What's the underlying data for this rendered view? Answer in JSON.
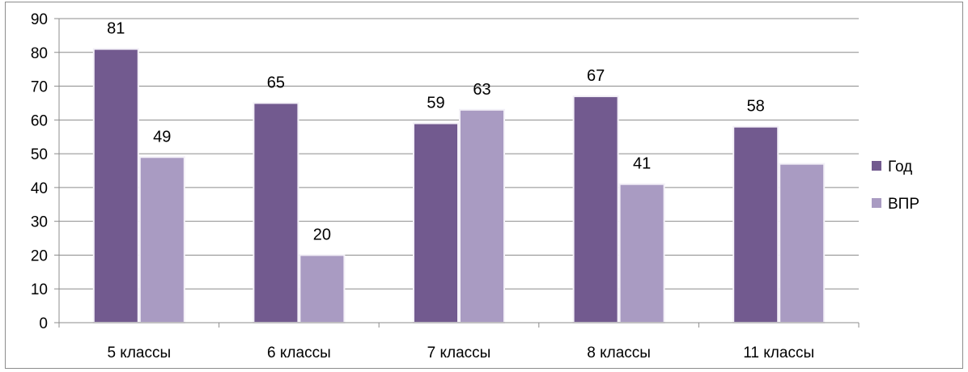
{
  "chart_data": {
    "type": "bar",
    "categories": [
      "5 классы",
      "6 классы",
      "7 классы",
      "8 классы",
      "11 классы"
    ],
    "series": [
      {
        "name": "Год",
        "values": [
          81,
          65,
          59,
          67,
          58
        ],
        "color": "#725a8f",
        "labels": [
          "81",
          "65",
          "59",
          "67",
          "58"
        ]
      },
      {
        "name": "ВПР",
        "values": [
          49,
          20,
          63,
          41,
          47
        ],
        "color": "#a99bc2",
        "labels": [
          "49",
          "20",
          "63",
          "41",
          ""
        ]
      }
    ],
    "ylim": [
      0,
      90
    ],
    "yticks": [
      "0",
      "10",
      "20",
      "30",
      "40",
      "50",
      "60",
      "70",
      "80",
      "90"
    ],
    "grid": true,
    "legend_position": "right"
  }
}
